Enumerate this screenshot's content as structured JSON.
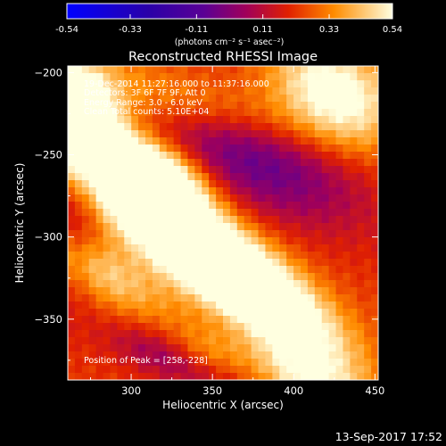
{
  "chart_data": {
    "type": "heatmap",
    "title": "Reconstructed RHESSI Image",
    "xlabel": "Heliocentric X (arcsec)",
    "ylabel": "Heliocentric Y (arcsec)",
    "xlim": [
      261,
      452
    ],
    "ylim": [
      -387,
      -196
    ],
    "x_ticks": [
      300,
      350,
      400,
      450
    ],
    "y_ticks": [
      -200,
      -250,
      -300,
      -350
    ],
    "colorbar": {
      "range": [
        -0.54,
        0.54
      ],
      "ticks": [
        "-0.54",
        "-0.33",
        "-0.11",
        "0.11",
        "0.33",
        "0.54"
      ],
      "units": "(photons cm⁻² s⁻¹ asec⁻²)"
    },
    "annotations": [
      "19-Dec-2014 11:27:16.000 to 11:37:16.000",
      "Detectors: 3F 6F 7F 9F, Att 0",
      "Energy Range: 3.0 - 6.0 keV",
      "Clean    Total counts: 5.10E+04"
    ],
    "peak_label": "Position of Peak = [258,-228]",
    "peak": [
      258,
      -228
    ],
    "blobs": [
      {
        "x": 330,
        "y": -295,
        "sx": 55,
        "sy": 16,
        "rot": -32,
        "amp": 0.52
      },
      {
        "x": 370,
        "y": -332,
        "sx": 45,
        "sy": 14,
        "rot": -30,
        "amp": 0.42
      },
      {
        "x": 285,
        "y": -246,
        "sx": 38,
        "sy": 14,
        "rot": -35,
        "amp": 0.42
      },
      {
        "x": 262,
        "y": -222,
        "sx": 18,
        "sy": 18,
        "rot": 0,
        "amp": 0.55
      },
      {
        "x": 340,
        "y": -218,
        "sx": 55,
        "sy": 14,
        "rot": -15,
        "amp": 0.22
      },
      {
        "x": 425,
        "y": -212,
        "sx": 30,
        "sy": 20,
        "rot": -30,
        "amp": 0.38
      },
      {
        "x": 410,
        "y": -385,
        "sx": 30,
        "sy": 16,
        "rot": -30,
        "amp": 0.32
      },
      {
        "x": 275,
        "y": -318,
        "sx": 40,
        "sy": 12,
        "rot": -30,
        "amp": 0.25
      },
      {
        "x": 325,
        "y": -262,
        "sx": 20,
        "sy": 12,
        "rot": -30,
        "amp": 0.25
      },
      {
        "x": 345,
        "y": -372,
        "sx": 18,
        "sy": 10,
        "rot": -20,
        "amp": 0.18
      }
    ],
    "valleys": [
      {
        "x": 375,
        "y": -250,
        "sx": 50,
        "sy": 22,
        "rot": -25,
        "amp": -0.3
      },
      {
        "x": 330,
        "y": -375,
        "sx": 30,
        "sy": 10,
        "rot": -20,
        "amp": -0.22
      },
      {
        "x": 265,
        "y": -295,
        "sx": 12,
        "sy": 30,
        "rot": 0,
        "amp": -0.15
      }
    ],
    "base": 0.22
  },
  "date_stamp": "13-Sep-2017 17:52"
}
